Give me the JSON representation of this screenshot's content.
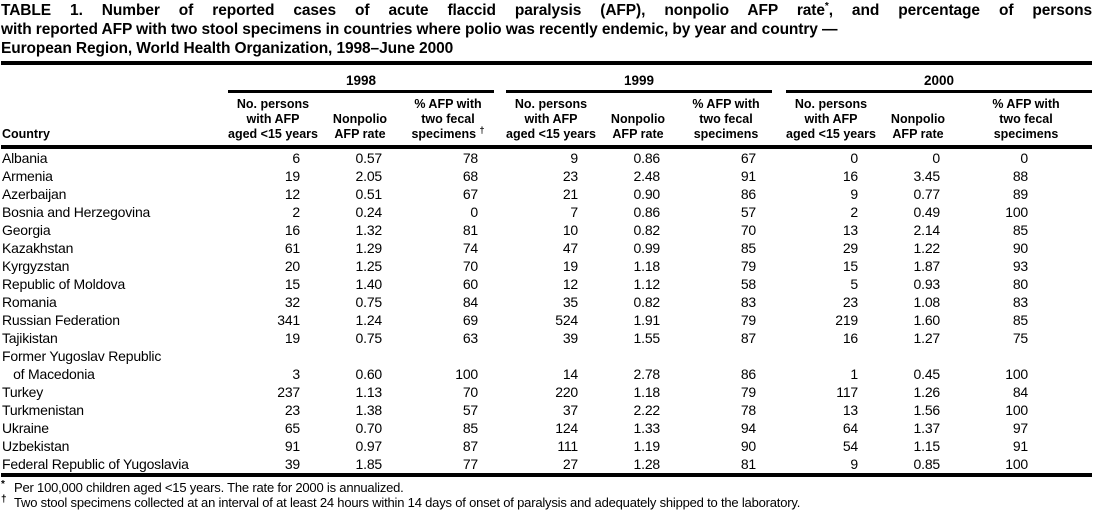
{
  "title": {
    "line1_text": "TABLE 1. Number of reported cases of acute flaccid paralysis (AFP), nonpolio AFP rate",
    "line1_marker": "*",
    "line1_tail": ", and percentage of persons",
    "line2": "with reported AFP with two stool specimens in countries where polio was recently endemic, by year and country —",
    "line3": "European Region, World Health Organization, 1998–June 2000"
  },
  "table": {
    "country_header": "Country",
    "year_groups": [
      {
        "year": "1998",
        "col_persons": "No. persons\nwith AFP\naged <15 years",
        "col_rate": "Nonpolio\nAFP rate",
        "col_pct": "% AFP with\ntwo fecal\nspecimens ",
        "col_pct_marker": "†"
      },
      {
        "year": "1999",
        "col_persons": "No. persons\nwith AFP\naged <15 years",
        "col_rate": "Nonpolio\nAFP rate",
        "col_pct": "% AFP with\ntwo fecal\nspecimens",
        "col_pct_marker": ""
      },
      {
        "year": "2000",
        "col_persons": "No. persons\nwith AFP\naged <15 years",
        "col_rate": "Nonpolio\nAFP rate",
        "col_pct": "% AFP with\ntwo fecal\nspecimens",
        "col_pct_marker": ""
      }
    ],
    "rows": [
      {
        "country": "Albania",
        "values": [
          "6",
          "0.57",
          "78",
          "9",
          "0.86",
          "67",
          "0",
          "0",
          "0"
        ]
      },
      {
        "country": "Armenia",
        "values": [
          "19",
          "2.05",
          "68",
          "23",
          "2.48",
          "91",
          "16",
          "3.45",
          "88"
        ]
      },
      {
        "country": "Azerbaijan",
        "values": [
          "12",
          "0.51",
          "67",
          "21",
          "0.90",
          "86",
          "9",
          "0.77",
          "89"
        ]
      },
      {
        "country": "Bosnia and Herzegovina",
        "values": [
          "2",
          "0.24",
          "0",
          "7",
          "0.86",
          "57",
          "2",
          "0.49",
          "100"
        ]
      },
      {
        "country": "Georgia",
        "values": [
          "16",
          "1.32",
          "81",
          "10",
          "0.82",
          "70",
          "13",
          "2.14",
          "85"
        ]
      },
      {
        "country": "Kazakhstan",
        "values": [
          "61",
          "1.29",
          "74",
          "47",
          "0.99",
          "85",
          "29",
          "1.22",
          "90"
        ]
      },
      {
        "country": "Kyrgyzstan",
        "values": [
          "20",
          "1.25",
          "70",
          "19",
          "1.18",
          "79",
          "15",
          "1.87",
          "93"
        ]
      },
      {
        "country": "Republic of Moldova",
        "values": [
          "15",
          "1.40",
          "60",
          "12",
          "1.12",
          "58",
          "5",
          "0.93",
          "80"
        ]
      },
      {
        "country": "Romania",
        "values": [
          "32",
          "0.75",
          "84",
          "35",
          "0.82",
          "83",
          "23",
          "1.08",
          "83"
        ]
      },
      {
        "country": "Russian Federation",
        "values": [
          "341",
          "1.24",
          "69",
          "524",
          "1.91",
          "79",
          "219",
          "1.60",
          "85"
        ]
      },
      {
        "country": "Tajikistan",
        "values": [
          "19",
          "0.75",
          "63",
          "39",
          "1.55",
          "87",
          "16",
          "1.27",
          "75"
        ]
      },
      {
        "country": "Former Yugoslav Republic\n   of Macedonia",
        "values": [
          "3",
          "0.60",
          "100",
          "14",
          "2.78",
          "86",
          "1",
          "0.45",
          "100"
        ]
      },
      {
        "country": "Turkey",
        "values": [
          "237",
          "1.13",
          "70",
          "220",
          "1.18",
          "79",
          "117",
          "1.26",
          "84"
        ]
      },
      {
        "country": "Turkmenistan",
        "values": [
          "23",
          "1.38",
          "57",
          "37",
          "2.22",
          "78",
          "13",
          "1.56",
          "100"
        ]
      },
      {
        "country": "Ukraine",
        "values": [
          "65",
          "0.70",
          "85",
          "124",
          "1.33",
          "94",
          "64",
          "1.37",
          "97"
        ]
      },
      {
        "country": "Uzbekistan",
        "values": [
          "91",
          "0.97",
          "87",
          "111",
          "1.19",
          "90",
          "54",
          "1.15",
          "91"
        ]
      },
      {
        "country": "Federal Republic of Yugoslavia",
        "values": [
          "39",
          "1.85",
          "77",
          "27",
          "1.28",
          "81",
          "9",
          "0.85",
          "100"
        ]
      }
    ]
  },
  "footnotes": [
    {
      "marker": "*",
      "text": "Per 100,000 children aged <15 years. The rate for 2000 is annualized."
    },
    {
      "marker": "†",
      "text": "Two stool specimens collected at an interval of at least 24 hours within 14 days of onset of paralysis and adequately shipped to the laboratory."
    }
  ]
}
